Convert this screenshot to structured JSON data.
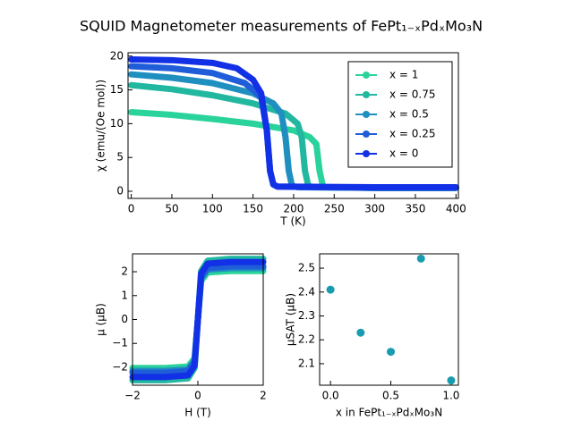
{
  "title": "SQUID Magnetometer measurements of FePt₁₋ₓPdₓMo₃N",
  "chart_data": [
    {
      "type": "line",
      "xlabel": "T (K)",
      "ylabel": "χ (emu/(Oe mol))",
      "xlim": [
        -4,
        403
      ],
      "ylim": [
        -1.06,
        20.5
      ],
      "xticks": [
        0,
        50,
        100,
        150,
        200,
        250,
        300,
        350,
        400
      ],
      "yticks": [
        0,
        5,
        10,
        15,
        20
      ],
      "legend": "upper right",
      "series": [
        {
          "name": "x = 1",
          "color": "#2bd39c",
          "x": [
            0,
            50,
            100,
            150,
            200,
            220,
            228,
            232,
            236,
            240,
            300,
            400
          ],
          "values": [
            11.7,
            11.3,
            10.7,
            10,
            9,
            8,
            7,
            3,
            0.8,
            0.6,
            0.5,
            0.5
          ]
        },
        {
          "name": "x = 0.75",
          "color": "#22b8a0",
          "x": [
            0,
            50,
            100,
            150,
            190,
            205,
            210,
            214,
            218,
            225,
            300,
            400
          ],
          "values": [
            15.7,
            15.1,
            14.2,
            13,
            11.5,
            10,
            8,
            3,
            0.8,
            0.6,
            0.5,
            0.5
          ]
        },
        {
          "name": "x = 0.5",
          "color": "#1f8fc0",
          "x": [
            0,
            50,
            100,
            150,
            175,
            185,
            190,
            194,
            198,
            205,
            300,
            400
          ],
          "values": [
            17.3,
            16.8,
            16,
            14.5,
            13,
            11.5,
            8,
            3,
            0.8,
            0.6,
            0.5,
            0.5
          ]
        },
        {
          "name": "x = 0.25",
          "color": "#1f5ed8",
          "x": [
            0,
            50,
            100,
            140,
            160,
            167,
            171,
            175,
            180,
            300,
            400
          ],
          "values": [
            18.5,
            18.2,
            17.5,
            16,
            14,
            9,
            3,
            1,
            0.7,
            0.5,
            0.5
          ]
        },
        {
          "name": "x = 0",
          "color": "#1230e6",
          "x": [
            0,
            50,
            100,
            130,
            150,
            160,
            167,
            171,
            175,
            180,
            300,
            400
          ],
          "values": [
            19.5,
            19.4,
            19,
            18.2,
            16.5,
            14.5,
            9,
            3,
            1,
            0.7,
            0.6,
            0.6
          ]
        }
      ]
    },
    {
      "type": "line",
      "xlabel": "H (T)",
      "ylabel": "μ (μB)",
      "xlim": [
        -2,
        2
      ],
      "ylim": [
        -2.75,
        2.75
      ],
      "xticks": [
        {
          "value": -2,
          "label": "−2"
        },
        0,
        2
      ],
      "yticks": [
        {
          "value": -2,
          "label": "−2"
        },
        {
          "value": -1,
          "label": "−1"
        },
        0,
        1,
        2
      ],
      "series": [
        {
          "color": "#2bd39c",
          "x": [
            -2,
            -1,
            -0.3,
            -0.1,
            -0.05,
            0,
            0.05,
            0.1,
            0.3,
            1,
            2
          ],
          "values": [
            -2.03,
            -2.03,
            -1.97,
            -1.62,
            -0.81,
            0,
            0.81,
            1.62,
            1.97,
            2.03,
            2.03
          ]
        },
        {
          "color": "#22b8a0",
          "x": [
            -2,
            -1,
            -0.3,
            -0.1,
            -0.05,
            0,
            0.05,
            0.1,
            0.3,
            1,
            2
          ],
          "values": [
            -2.54,
            -2.54,
            -2.46,
            -2.03,
            -1.02,
            0,
            1.02,
            2.03,
            2.46,
            2.54,
            2.54
          ]
        },
        {
          "color": "#1f8fc0",
          "x": [
            -2,
            -1,
            -0.3,
            -0.1,
            -0.05,
            0,
            0.05,
            0.1,
            0.3,
            1,
            2
          ],
          "values": [
            -2.15,
            -2.15,
            -2.09,
            -1.72,
            -0.86,
            0,
            0.86,
            1.72,
            2.09,
            2.15,
            2.15
          ]
        },
        {
          "color": "#1f5ed8",
          "x": [
            -2,
            -1,
            -0.3,
            -0.1,
            -0.05,
            0,
            0.05,
            0.1,
            0.3,
            1,
            2
          ],
          "values": [
            -2.23,
            -2.23,
            -2.16,
            -1.78,
            -0.89,
            0,
            0.89,
            1.78,
            2.16,
            2.23,
            2.23
          ]
        },
        {
          "color": "#1230e6",
          "x": [
            -2,
            -1,
            -0.3,
            -0.1,
            -0.05,
            0,
            0.05,
            0.1,
            0.3,
            1,
            2
          ],
          "values": [
            -2.41,
            -2.41,
            -2.34,
            -1.93,
            -0.96,
            0,
            0.96,
            1.93,
            2.34,
            2.41,
            2.41
          ]
        }
      ]
    },
    {
      "type": "scatter",
      "xlabel": "x in FePt₁₋ₓPdₓMo₃N",
      "ylabel": "μSAT (μB)",
      "xlim": [
        -0.09,
        1.06
      ],
      "ylim": [
        2.01,
        2.56
      ],
      "xticks": [
        {
          "value": 0,
          "label": "0.0"
        },
        0.5,
        {
          "value": 1,
          "label": "1.0"
        }
      ],
      "yticks": [
        2.1,
        2.2,
        2.3,
        2.4,
        2.5
      ],
      "color": "#1a9cb0",
      "x": [
        0,
        0.25,
        0.5,
        0.75,
        1
      ],
      "values": [
        2.41,
        2.23,
        2.15,
        2.54,
        2.03
      ]
    }
  ]
}
